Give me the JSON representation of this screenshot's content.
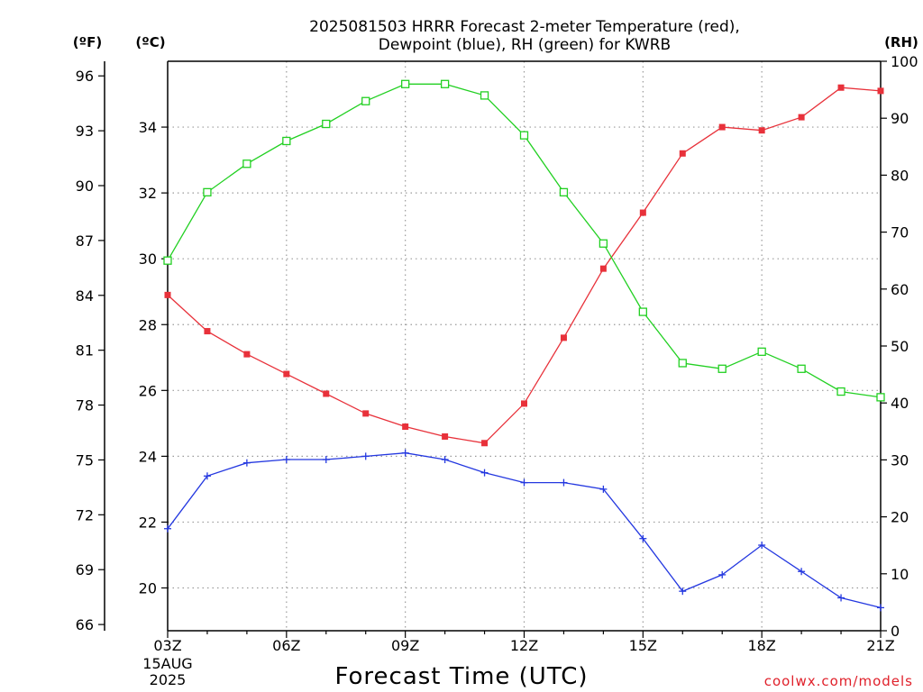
{
  "chart_data": {
    "type": "line",
    "title_line1": "2025081503 HRRR Forecast 2-meter Temperature (red),",
    "title_line2": "Dewpoint (blue), RH (green) for KWRB",
    "xlabel": "Forecast Time (UTC)",
    "credit": "coolwx.com/models",
    "unit_f": "(ºF)",
    "unit_c": "(ºC)",
    "unit_rh": "(RH)",
    "x_ticks": [
      "03Z",
      "06Z",
      "09Z",
      "12Z",
      "15Z",
      "18Z",
      "21Z"
    ],
    "x_date_line1": "15AUG",
    "x_date_line2": "2025",
    "hours": [
      3,
      4,
      5,
      6,
      7,
      8,
      9,
      10,
      11,
      12,
      13,
      14,
      15,
      16,
      17,
      18,
      19,
      20,
      21
    ],
    "xlim": [
      3,
      21
    ],
    "celsius_axis": {
      "ylim": [
        18.7,
        36.0
      ],
      "ticks": [
        20,
        22,
        24,
        26,
        28,
        30,
        32,
        34
      ]
    },
    "fahrenheit_axis": {
      "ticks": [
        66,
        69,
        72,
        75,
        78,
        81,
        84,
        87,
        90,
        93,
        96
      ]
    },
    "rh_axis": {
      "ylim": [
        0,
        100
      ],
      "ticks": [
        0,
        10,
        20,
        30,
        40,
        50,
        60,
        70,
        80,
        90,
        100
      ]
    },
    "grid": true,
    "series": [
      {
        "name": "Temperature",
        "color": "#e8313a",
        "marker": "filled-square",
        "axis": "celsius",
        "values": [
          28.9,
          27.8,
          27.1,
          26.5,
          25.9,
          25.3,
          24.9,
          24.6,
          24.4,
          25.6,
          27.6,
          29.7,
          31.4,
          33.2,
          34.0,
          33.9,
          34.3,
          35.2,
          35.1
        ]
      },
      {
        "name": "Dewpoint",
        "color": "#2438e0",
        "marker": "plus",
        "axis": "celsius",
        "values": [
          21.8,
          23.4,
          23.8,
          23.9,
          23.9,
          24.0,
          24.1,
          23.9,
          23.5,
          23.2,
          23.2,
          23.0,
          21.5,
          19.9,
          20.4,
          21.3,
          20.5,
          19.7,
          19.4
        ]
      },
      {
        "name": "RH",
        "color": "#22d022",
        "marker": "open-square",
        "axis": "rh",
        "values": [
          65,
          77,
          82,
          86,
          89,
          93,
          96,
          96,
          94,
          87,
          77,
          68,
          56,
          47,
          46,
          49,
          46,
          42,
          41
        ]
      }
    ]
  }
}
